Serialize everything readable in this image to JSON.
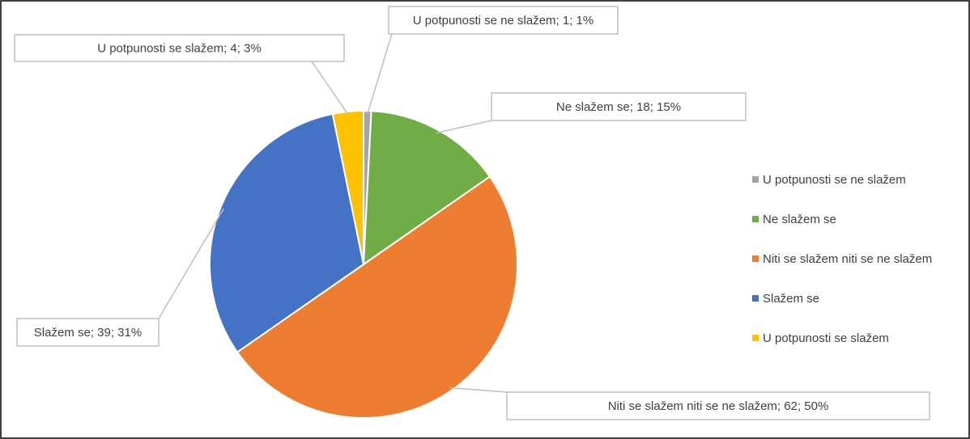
{
  "chart_data": {
    "type": "pie",
    "categories": [
      "U potpunosti se ne slažem",
      "Ne slažem se",
      "Niti se slažem niti se ne slažem",
      "Slažem se",
      "U potpunosti se slažem"
    ],
    "values": [
      1,
      18,
      62,
      39,
      4
    ],
    "value_labels": [
      "U potpunosti se ne slažem; 1; 1%",
      "Ne slažem se; 18; 15%",
      "Niti se slažem niti se ne slažem; 62; 50%",
      "Slažem se; 39; 31%",
      "U potpunosti se slažem; 4; 3%"
    ],
    "colors": [
      "#a5a5a5",
      "#70ad47",
      "#ed7d31",
      "#4472c4",
      "#ffc000"
    ],
    "legend": "right"
  }
}
